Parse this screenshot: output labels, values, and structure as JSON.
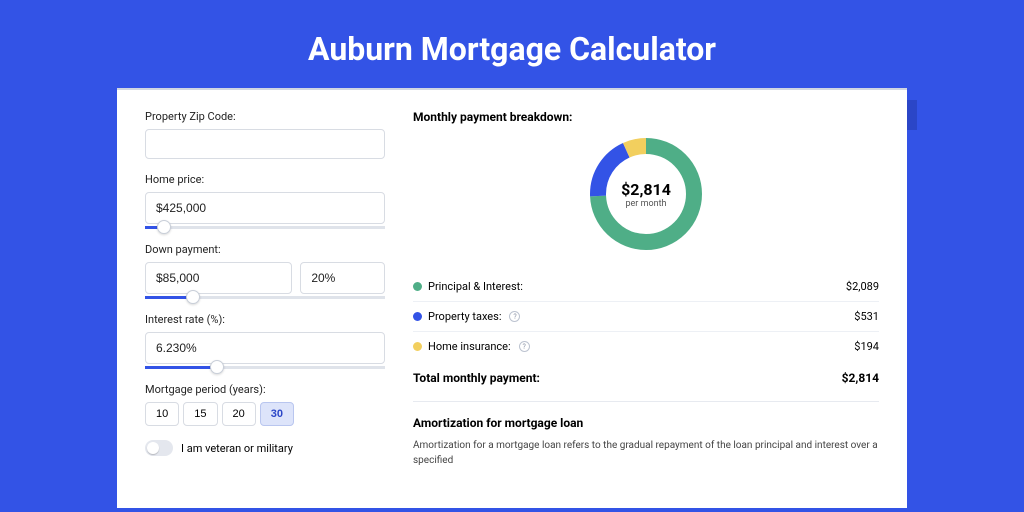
{
  "title": "Auburn Mortgage Calculator",
  "form": {
    "zip": {
      "label": "Property Zip Code:",
      "value": ""
    },
    "price": {
      "label": "Home price:",
      "value": "$425,000",
      "slider_pct": 8
    },
    "down": {
      "label": "Down payment:",
      "value": "$85,000",
      "pct": "20%",
      "slider_pct": 20
    },
    "rate": {
      "label": "Interest rate (%):",
      "value": "6.230%",
      "slider_pct": 30
    },
    "period": {
      "label": "Mortgage period (years):",
      "options": [
        "10",
        "15",
        "20",
        "30"
      ],
      "active": "30"
    },
    "veteran_label": "I am veteran or military"
  },
  "breakdown": {
    "title": "Monthly payment breakdown:",
    "donut": {
      "value": "$2,814",
      "sub": "per month",
      "segments": [
        {
          "key": "pi",
          "pct": 74.2,
          "color": "#4fae87"
        },
        {
          "key": "tax",
          "pct": 18.9,
          "color": "#3353e6"
        },
        {
          "key": "ins",
          "pct": 6.9,
          "color": "#f2cf5e"
        }
      ],
      "stroke_width": 16
    },
    "items": [
      {
        "label": "Principal & Interest:",
        "value": "$2,089",
        "color": "#4fae87",
        "info": false
      },
      {
        "label": "Property taxes:",
        "value": "$531",
        "color": "#3353e6",
        "info": true
      },
      {
        "label": "Home insurance:",
        "value": "$194",
        "color": "#f2cf5e",
        "info": true
      }
    ],
    "total_label": "Total monthly payment:",
    "total_value": "$2,814"
  },
  "amort": {
    "title": "Amortization for mortgage loan",
    "text": "Amortization for a mortgage loan refers to the gradual repayment of the loan principal and interest over a specified"
  },
  "colors": {
    "bg": "#3353e6"
  }
}
